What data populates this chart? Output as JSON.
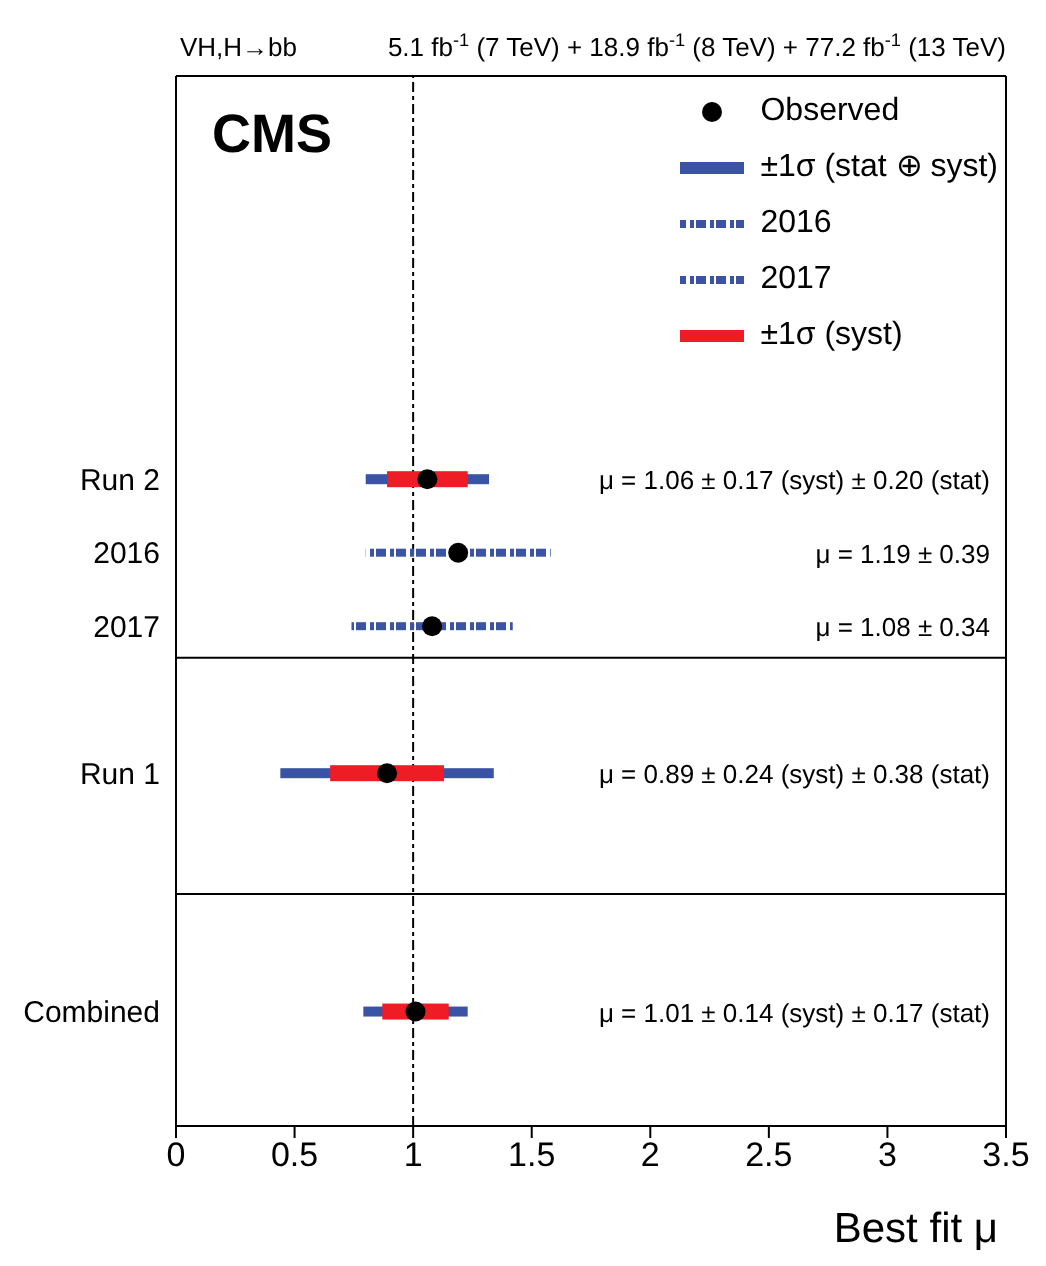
{
  "chart_data": {
    "type": "bar",
    "orientation": "horizontal",
    "title": "CMS",
    "subtitle": "VH,H→bb",
    "xlabel": "Best fit μ",
    "categories": [
      "Run 2",
      "2016",
      "2017",
      "Run 1",
      "Combined"
    ],
    "series": [
      {
        "name": "Observed",
        "type": "scatter",
        "color": "#000000",
        "values": [
          1.06,
          1.19,
          1.08,
          0.89,
          1.01
        ],
        "marker": "circle"
      },
      {
        "name": "±1σ (stat ⊕ syst)",
        "color": "#3a53a4",
        "base": [
          0.8,
          null,
          null,
          0.44,
          0.79
        ],
        "values": [
          0.52,
          null,
          null,
          0.9,
          0.44
        ],
        "line_style": "solid"
      },
      {
        "name": "2016",
        "color": "#3a53a4",
        "base": [
          null,
          0.8,
          null,
          null,
          null
        ],
        "values": [
          null,
          0.78,
          null,
          null,
          null
        ],
        "line_style": "dashed"
      },
      {
        "name": "2017",
        "color": "#3a53a4",
        "base": [
          null,
          null,
          0.74,
          null,
          null
        ],
        "values": [
          null,
          null,
          0.68,
          null,
          null
        ],
        "line_style": "dashed"
      },
      {
        "name": "±1σ (syst)",
        "color": "#ee1c25",
        "base": [
          0.89,
          null,
          null,
          0.65,
          0.87
        ],
        "values": [
          0.34,
          null,
          null,
          0.48,
          0.28
        ],
        "line_style": "solid"
      }
    ],
    "xlim": [
      0,
      3.5
    ],
    "xticks": [
      0,
      0.5,
      1,
      1.5,
      2,
      2.5,
      3,
      3.5
    ],
    "ref_lines": [
      {
        "axis": "x",
        "value": 1,
        "line_style": "dashed",
        "color": "#000000"
      }
    ],
    "legend": "top right",
    "grid": false,
    "annotations": [
      "5.1 fb$^{-1}$ (7 TeV) + 18.9 fb$^{-1}$ (8 TeV) + 77.2 fb$^{-1}$ (13 TeV)",
      "μ = 1.06 ± 0.17 (syst) ± 0.20 (stat)",
      "μ = 1.19 ± 0.39",
      "μ = 1.08 ± 0.34",
      "μ = 0.89 ± 0.24 (syst) ± 0.38 (stat)",
      "μ = 1.01 ± 0.14 (syst) ± 0.17 (stat)"
    ]
  }
}
